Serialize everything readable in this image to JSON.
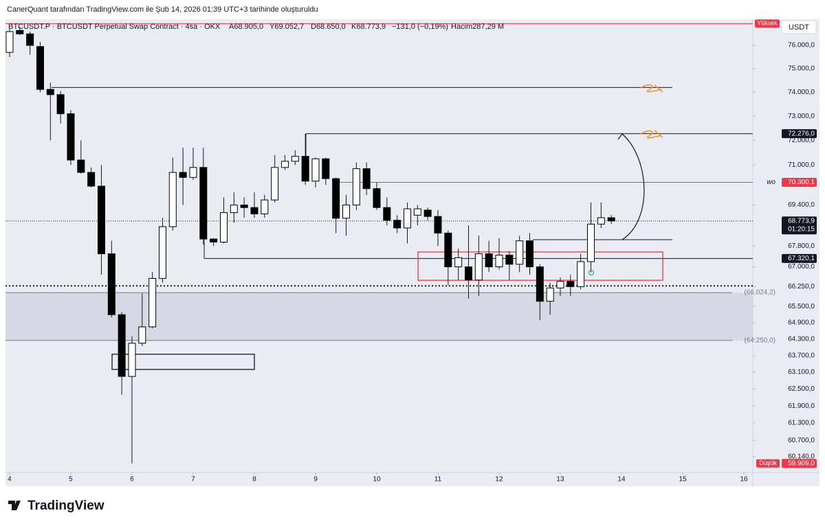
{
  "header": {
    "credit": "CanerQuant tarafından TradingView.com ile Şub 14, 2026 01:39 UTC+3 tarihinde oluşturuldu",
    "symbol": "BTCUSDT.P · BTCUSDT Perpetual Swap Contract · 4sa · OKX",
    "open": "A68.905,0",
    "high": "Y69.052,7",
    "low": "D68.650,0",
    "close": "K68.773,9",
    "change": "−131,0 (−0,19%)",
    "volume": "Hacim287,29 M"
  },
  "chart_data": {
    "type": "candlestick",
    "currency": "USDT",
    "log_scale": true,
    "grid": false,
    "x": [
      4,
      4.1667,
      4.3333,
      4.5,
      4.6667,
      4.8333,
      5,
      5.1667,
      5.3333,
      5.5,
      5.6667,
      5.8333,
      6,
      6.1667,
      6.3333,
      6.5,
      6.6667,
      6.8333,
      7,
      7.1667,
      7.3333,
      7.5,
      7.6667,
      7.8333,
      8,
      8.1667,
      8.3333,
      8.5,
      8.6667,
      8.8333,
      9,
      9.1667,
      9.3333,
      9.5,
      9.6667,
      9.8333,
      10,
      10.1667,
      10.3333,
      10.5,
      10.6667,
      10.8333,
      11,
      11.1667,
      11.3333,
      11.5,
      11.6667,
      11.8333,
      12,
      12.1667,
      12.3333,
      12.5,
      12.6667,
      12.8333,
      13,
      13.1667,
      13.3333,
      13.5,
      13.6667,
      13.8333
    ],
    "open": [
      75700,
      76650,
      76500,
      75950,
      74120,
      73900,
      73100,
      71200,
      70700,
      70150,
      67500,
      65200,
      62950,
      64150,
      64750,
      66560,
      68550,
      70700,
      70500,
      70900,
      68070,
      67950,
      69100,
      69400,
      69300,
      69050,
      69600,
      70900,
      71150,
      71350,
      70350,
      71250,
      70450,
      68880,
      69400,
      70850,
      70050,
      69300,
      68800,
      68500,
      69000,
      69200,
      68950,
      68300,
      67000,
      67000,
      66500,
      67500,
      67000,
      67450,
      67100,
      68000,
      67000,
      65700,
      66200,
      66450,
      66250,
      67200,
      68650,
      68900
    ],
    "high": [
      76700,
      76800,
      76600,
      76150,
      74400,
      74050,
      73250,
      72000,
      70900,
      71000,
      68000,
      65300,
      64400,
      66000,
      66800,
      68900,
      71300,
      71700,
      71700,
      71700,
      68100,
      69700,
      69900,
      69700,
      69900,
      69800,
      71400,
      71400,
      71600,
      72276,
      71300,
      71300,
      70500,
      69800,
      71100,
      71100,
      70300,
      69700,
      69000,
      69500,
      69400,
      69300,
      69200,
      68400,
      67700,
      68600,
      68200,
      68000,
      68100,
      67600,
      68200,
      68300,
      67100,
      66400,
      66600,
      66700,
      67500,
      69500,
      69500,
      69000
    ],
    "low": [
      75500,
      76450,
      75600,
      74000,
      72000,
      72700,
      71000,
      70650,
      70100,
      66700,
      65100,
      62300,
      59909,
      64050,
      64700,
      66400,
      68400,
      69400,
      70400,
      67850,
      67800,
      67900,
      68700,
      68900,
      68900,
      68900,
      69500,
      70800,
      71000,
      70200,
      70100,
      70200,
      68300,
      68200,
      69200,
      69800,
      69200,
      68600,
      68300,
      67900,
      68600,
      68800,
      67800,
      66300,
      66500,
      65800,
      65900,
      66800,
      66900,
      66500,
      66800,
      66700,
      65000,
      65200,
      65900,
      65900,
      66150,
      66800,
      68500,
      68650
    ],
    "close": [
      76600,
      76500,
      76000,
      74120,
      73900,
      73100,
      71200,
      70700,
      70150,
      67500,
      65200,
      62950,
      64150,
      64750,
      66560,
      68550,
      70700,
      70500,
      70900,
      68070,
      67950,
      69100,
      69400,
      69300,
      69050,
      69600,
      70900,
      71150,
      71350,
      70350,
      71250,
      70450,
      68880,
      69400,
      70850,
      70050,
      69300,
      68800,
      68500,
      69250,
      69250,
      68950,
      68300,
      67000,
      67350,
      66500,
      67500,
      67000,
      67450,
      67100,
      68000,
      67000,
      65700,
      66200,
      66450,
      66250,
      67200,
      68650,
      68900,
      68773.9
    ],
    "xlim": [
      3.933,
      16.146
    ],
    "xticks": [
      4,
      5,
      6,
      7,
      8,
      9,
      10,
      11,
      12,
      13,
      14,
      15,
      16
    ],
    "ylim": [
      59600,
      77080
    ],
    "yticks": [
      {
        "value": 76000,
        "label": "76.000,0"
      },
      {
        "value": 75000,
        "label": "75.000,0"
      },
      {
        "value": 74000,
        "label": "74.000,0"
      },
      {
        "value": 73000,
        "label": "73.000,0"
      },
      {
        "value": 72000,
        "label": "72.000,0"
      },
      {
        "value": 71000,
        "label": "71.000,0"
      },
      {
        "value": 69400,
        "label": "69.400,0"
      },
      {
        "value": 67800,
        "label": "67.800,0"
      },
      {
        "value": 67000,
        "label": "67.000,0"
      },
      {
        "value": 66250,
        "label": "66.250,0"
      },
      {
        "value": 65500,
        "label": "65.500,0"
      },
      {
        "value": 64900,
        "label": "64.900,0"
      },
      {
        "value": 64300,
        "label": "64.300,0"
      },
      {
        "value": 63700,
        "label": "63.700,0"
      },
      {
        "value": 63100,
        "label": "63.100,0"
      },
      {
        "value": 62500,
        "label": "62.500,0"
      },
      {
        "value": 61900,
        "label": "61.900,0"
      },
      {
        "value": 61300,
        "label": "61.300,0"
      },
      {
        "value": 60700,
        "label": "60.700,0"
      },
      {
        "value": 60140,
        "label": "60.140,0"
      }
    ],
    "levels": [
      {
        "price": 74200
      },
      {
        "price": 72276,
        "label": "72.276,0"
      },
      {
        "price": 70300.1,
        "label": "70.300,1",
        "tag": "wo"
      },
      {
        "price": 68773.9,
        "label": "68.773,9",
        "countdown": "01:20:15"
      },
      {
        "price": 68045
      },
      {
        "price": 67320.1,
        "label": "67.320,1"
      },
      {
        "price": 66280
      },
      {
        "price": 66024.2,
        "label": "(66.024,2)"
      },
      {
        "price": 64250,
        "label": "(64.250,0)"
      }
    ],
    "zones": [
      {
        "top": 67570,
        "bottom": 66490
      },
      {
        "top": 63750,
        "bottom": 63200
      }
    ],
    "session_high": {
      "label": "Yüksek",
      "price": 76950
    },
    "session_low": {
      "label": "Düşük",
      "price": 59909,
      "value_label": "59.909,0"
    }
  },
  "brand": "TradingView"
}
